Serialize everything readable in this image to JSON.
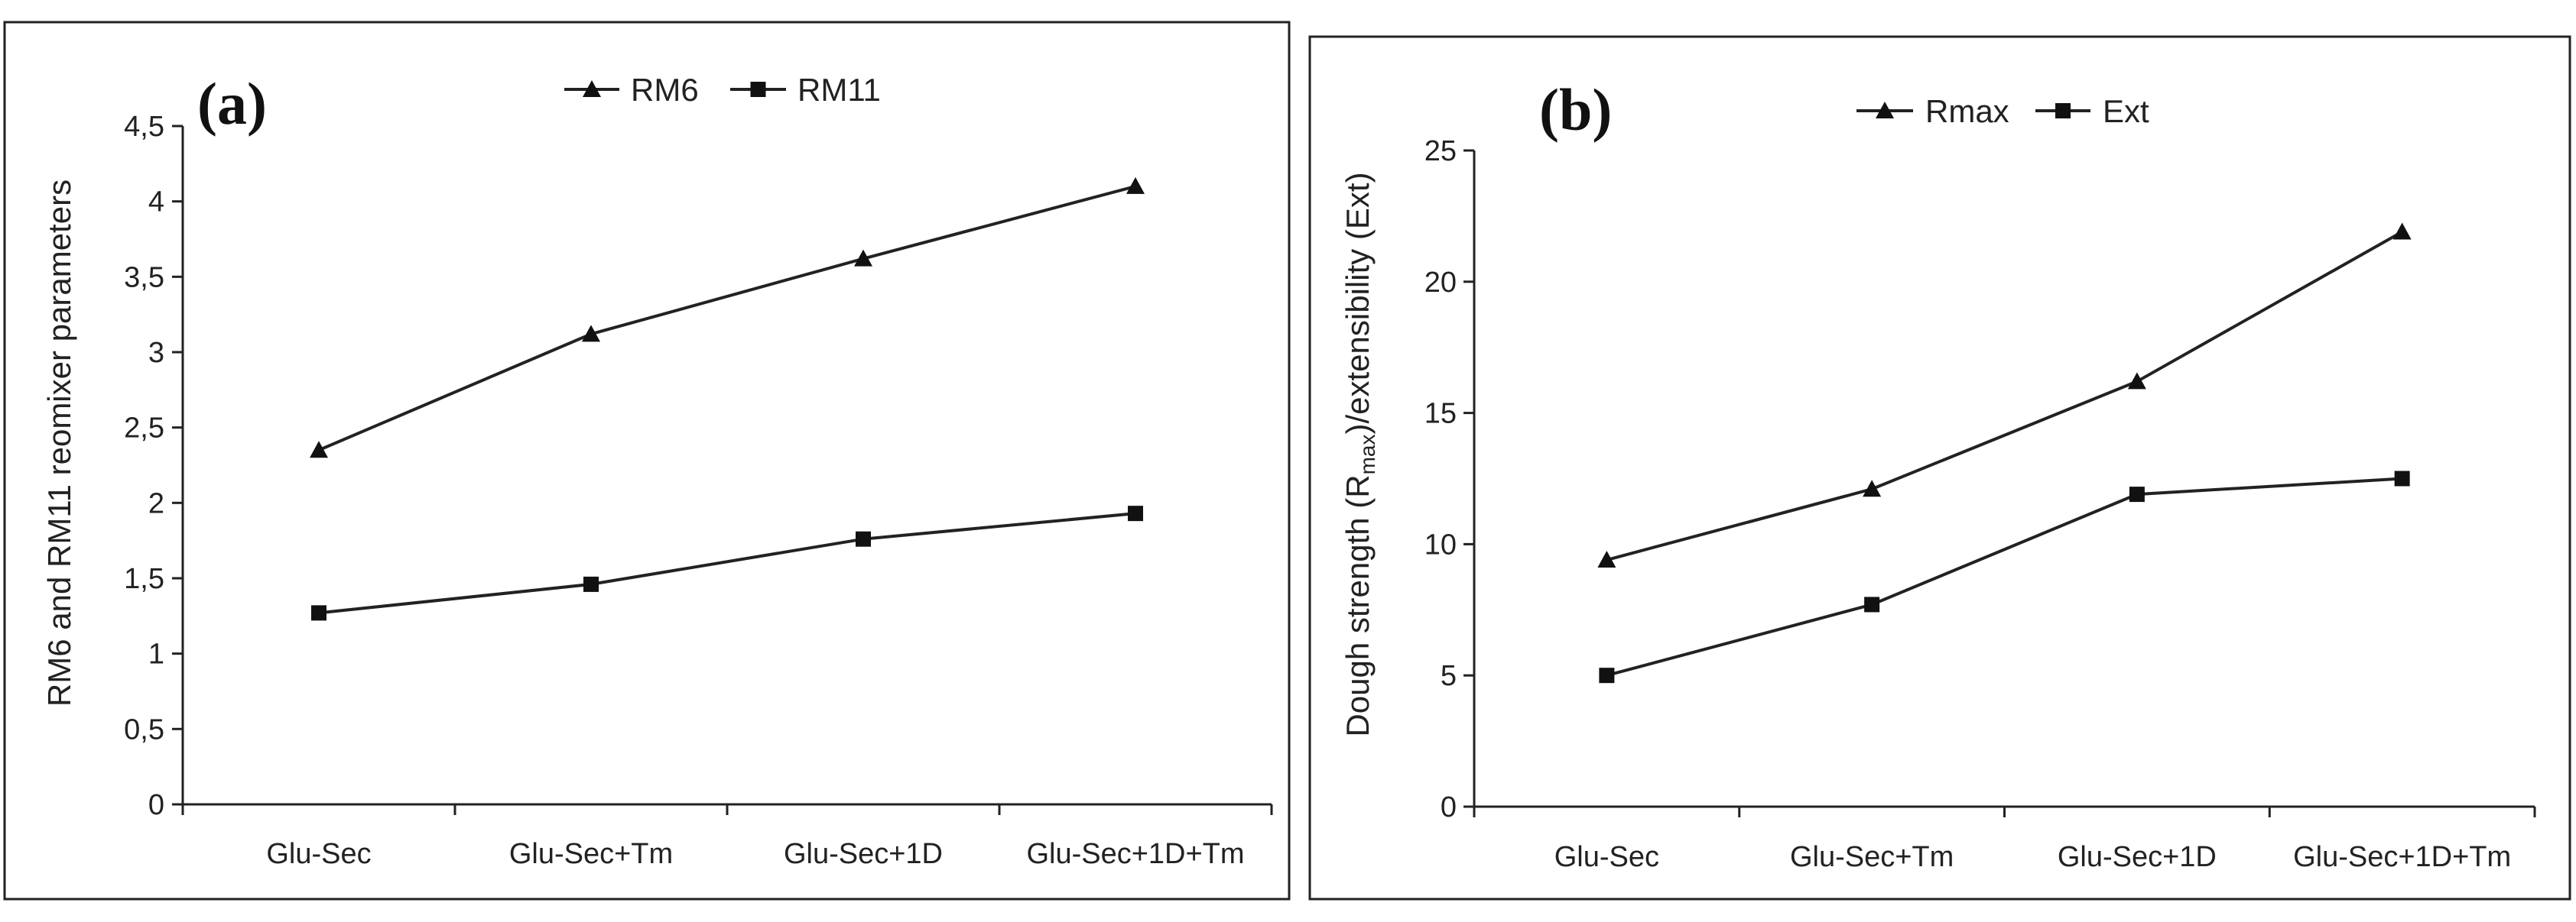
{
  "chart_data": [
    {
      "panel": "(a)",
      "type": "line",
      "categories": [
        "Glu-Sec",
        "Glu-Sec+Tm",
        "Glu-Sec+1D",
        "Glu-Sec+1D+Tm"
      ],
      "series": [
        {
          "name": "RM6",
          "marker": "triangle",
          "values": [
            2.35,
            3.12,
            3.62,
            4.1
          ]
        },
        {
          "name": "RM11",
          "marker": "square",
          "values": [
            1.27,
            1.46,
            1.76,
            1.93
          ]
        }
      ],
      "ylabel": "RM6 and RM11 reomixer parameters",
      "ylim": [
        0,
        4.5
      ],
      "yticks": [
        0,
        0.5,
        1,
        1.5,
        2,
        2.5,
        3,
        3.5,
        4,
        4.5
      ],
      "ytick_labels": [
        "0",
        "0,5",
        "1",
        "1,5",
        "2",
        "2,5",
        "3",
        "3,5",
        "4",
        "4,5"
      ],
      "legend_position": "top-center",
      "grid": false
    },
    {
      "panel": "(b)",
      "type": "line",
      "categories": [
        "Glu-Sec",
        "Glu-Sec+Tm",
        "Glu-Sec+1D",
        "Glu-Sec+1D+Tm"
      ],
      "series": [
        {
          "name": "Rmax",
          "marker": "triangle",
          "values": [
            9.4,
            12.1,
            16.2,
            21.9
          ]
        },
        {
          "name": "Ext",
          "marker": "square",
          "values": [
            5.0,
            7.7,
            11.9,
            12.5
          ]
        }
      ],
      "ylabel_parts": {
        "before": "Dough strength (R",
        "sub": "max",
        "after": ")/extensibility (Ext)"
      },
      "ylim": [
        0,
        25
      ],
      "yticks": [
        0,
        5,
        10,
        15,
        20,
        25
      ],
      "ytick_labels": [
        "0",
        "5",
        "10",
        "15",
        "20",
        "25"
      ],
      "legend_position": "top-center",
      "grid": false
    }
  ]
}
